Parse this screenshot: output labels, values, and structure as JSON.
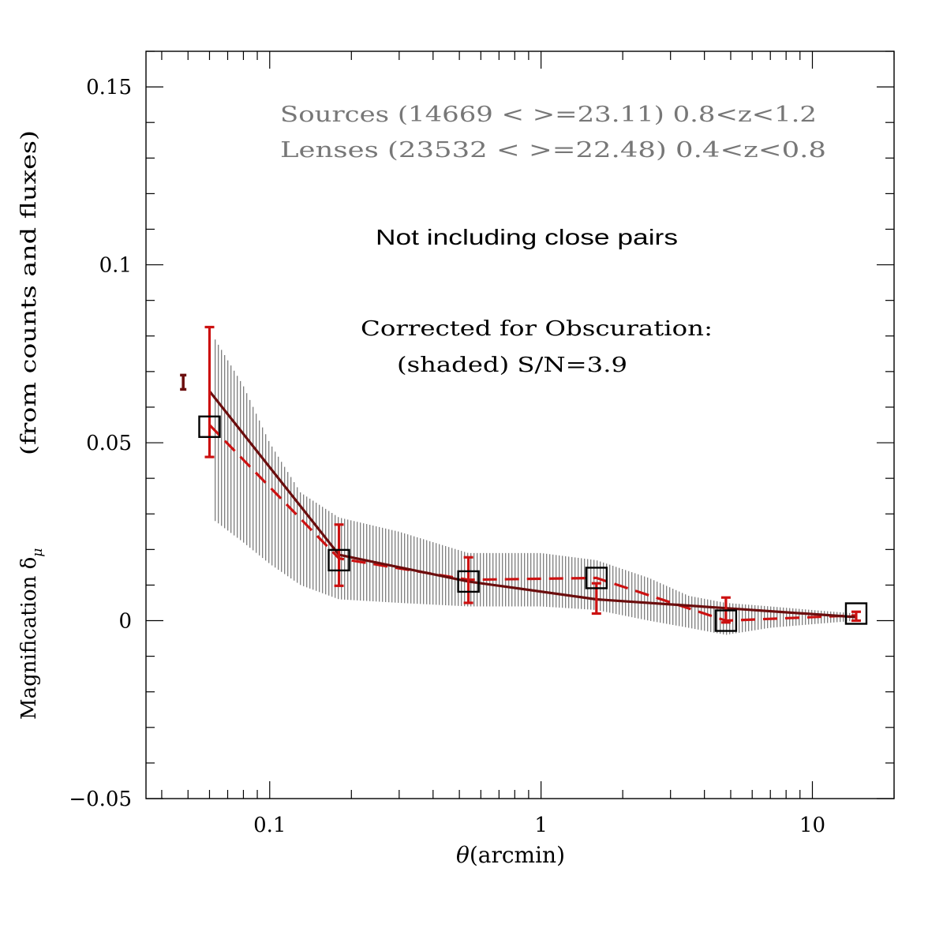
{
  "chart_data": {
    "type": "scatter",
    "x_scale": "log",
    "xlim": [
      0.035,
      20
    ],
    "ylim": [
      -0.05,
      0.16
    ],
    "xlabel_symbol": "θ",
    "xlabel_unit": "(arcmin)",
    "ylabel_main": "Magnification δ",
    "ylabel_sub": "μ",
    "ylabel_note": "(from counts and fluxes)",
    "x_ticks": [
      {
        "value": 0.1,
        "label": "0.1"
      },
      {
        "value": 1,
        "label": "1"
      },
      {
        "value": 10,
        "label": "10"
      }
    ],
    "y_ticks": [
      {
        "value": -0.05,
        "label": "−0.05"
      },
      {
        "value": 0,
        "label": "0"
      },
      {
        "value": 0.05,
        "label": "0.05"
      },
      {
        "value": 0.1,
        "label": "0.1"
      },
      {
        "value": 0.15,
        "label": "0.15"
      }
    ],
    "annotations": {
      "sources": "Sources (14669 < >=23.11) 0.8<z<1.2",
      "lenses": "Lenses  (23532 < >=22.48)  0.4<z<0.8",
      "close_pairs": "Not including close pairs",
      "corrected": "Corrected for Obscuration:",
      "shaded": "(shaded) S/N=3.9"
    },
    "series": [
      {
        "name": "squares",
        "marker": "square",
        "x": [
          0.06,
          0.18,
          0.54,
          1.6,
          4.8,
          14.5
        ],
        "y": [
          0.0545,
          0.017,
          0.011,
          0.012,
          0.0,
          0.002
        ]
      },
      {
        "name": "solid model",
        "style": "solid",
        "color": "#6b0d0d",
        "x": [
          0.06,
          0.18,
          0.54,
          1.6,
          4.8,
          14.5
        ],
        "y": [
          0.0645,
          0.0185,
          0.011,
          0.006,
          0.0035,
          0.001
        ]
      },
      {
        "name": "dashed corrected",
        "style": "dashed",
        "color": "#cc1111",
        "x": [
          0.06,
          0.18,
          0.54,
          1.6,
          4.8,
          14.5
        ],
        "y": [
          0.055,
          0.0175,
          0.0115,
          0.012,
          0.0,
          0.0015
        ],
        "yerr_low": [
          0.046,
          0.0098,
          0.005,
          0.002,
          -0.0005,
          0.0
        ],
        "yerr_high": [
          0.0825,
          0.027,
          0.0178,
          0.0105,
          0.0065,
          0.0025
        ]
      },
      {
        "name": "shaded band",
        "style": "hatched",
        "x": [
          0.063,
          0.08,
          0.1,
          0.13,
          0.18,
          0.3,
          0.54,
          1.0,
          1.6,
          2.5,
          3.5,
          4.8,
          7.0,
          10,
          14.5
        ],
        "lower": [
          0.028,
          0.022,
          0.016,
          0.01,
          0.006,
          0.005,
          0.004,
          0.004,
          0.003,
          0.0,
          -0.002,
          -0.004,
          -0.002,
          -0.001,
          0.0
        ],
        "upper": [
          0.079,
          0.066,
          0.05,
          0.036,
          0.029,
          0.025,
          0.019,
          0.019,
          0.017,
          0.012,
          0.007,
          0.005,
          0.004,
          0.003,
          0.002
        ]
      },
      {
        "name": "isolated point",
        "color": "#6b0d0d",
        "x": [
          0.048
        ],
        "y": [
          0.067
        ],
        "yerr_low": [
          0.065
        ],
        "yerr_high": [
          0.069
        ]
      }
    ]
  }
}
